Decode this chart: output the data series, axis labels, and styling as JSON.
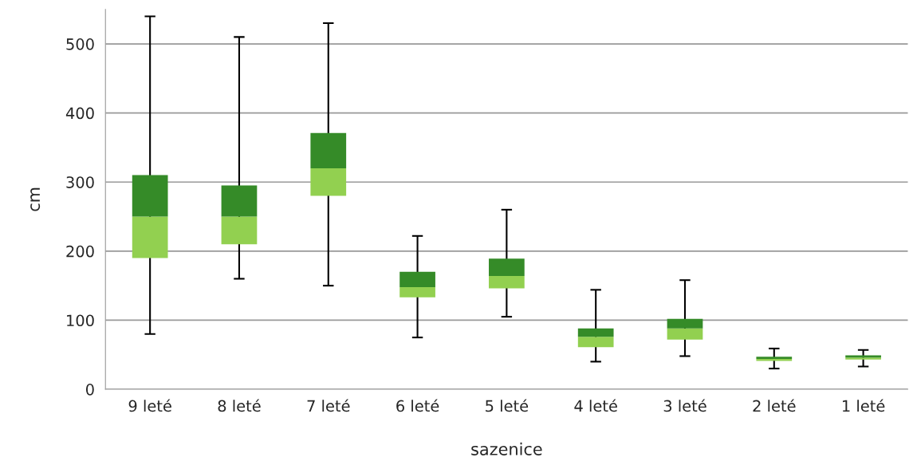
{
  "chart_data": {
    "type": "box",
    "xlabel": "sazenice",
    "ylabel": "cm",
    "categories": [
      "9 leté",
      "8 leté",
      "7 leté",
      "6 leté",
      "5 leté",
      "4 leté",
      "3 leté",
      "2 leté",
      "1 leté"
    ],
    "boxes": [
      {
        "low": 80,
        "q1": 190,
        "median": 250,
        "q3": 310,
        "high": 540
      },
      {
        "low": 160,
        "q1": 210,
        "median": 250,
        "q3": 295,
        "high": 510
      },
      {
        "low": 150,
        "q1": 280,
        "median": 320,
        "q3": 371,
        "high": 530
      },
      {
        "low": 75,
        "q1": 133,
        "median": 148,
        "q3": 170,
        "high": 222
      },
      {
        "low": 105,
        "q1": 146,
        "median": 164,
        "q3": 189,
        "high": 260
      },
      {
        "low": 40,
        "q1": 61,
        "median": 76,
        "q3": 88,
        "high": 144
      },
      {
        "low": 48,
        "q1": 72,
        "median": 88,
        "q3": 102,
        "high": 158
      },
      {
        "low": 30,
        "q1": 41,
        "median": 44,
        "q3": 47,
        "high": 59
      },
      {
        "low": 33,
        "q1": 43,
        "median": 46,
        "q3": 49,
        "high": 57
      }
    ],
    "color": "#358b28",
    "colors": [
      "#92d050",
      "#92d050",
      "#92d050",
      "#92d050",
      "#92d050",
      "#92d050",
      "#92d050",
      "#92d050",
      "#92d050"
    ],
    "ylim": [
      0,
      550
    ],
    "yticks": [
      0,
      100,
      200,
      300,
      400,
      500
    ],
    "grid": "y",
    "legend": false
  }
}
